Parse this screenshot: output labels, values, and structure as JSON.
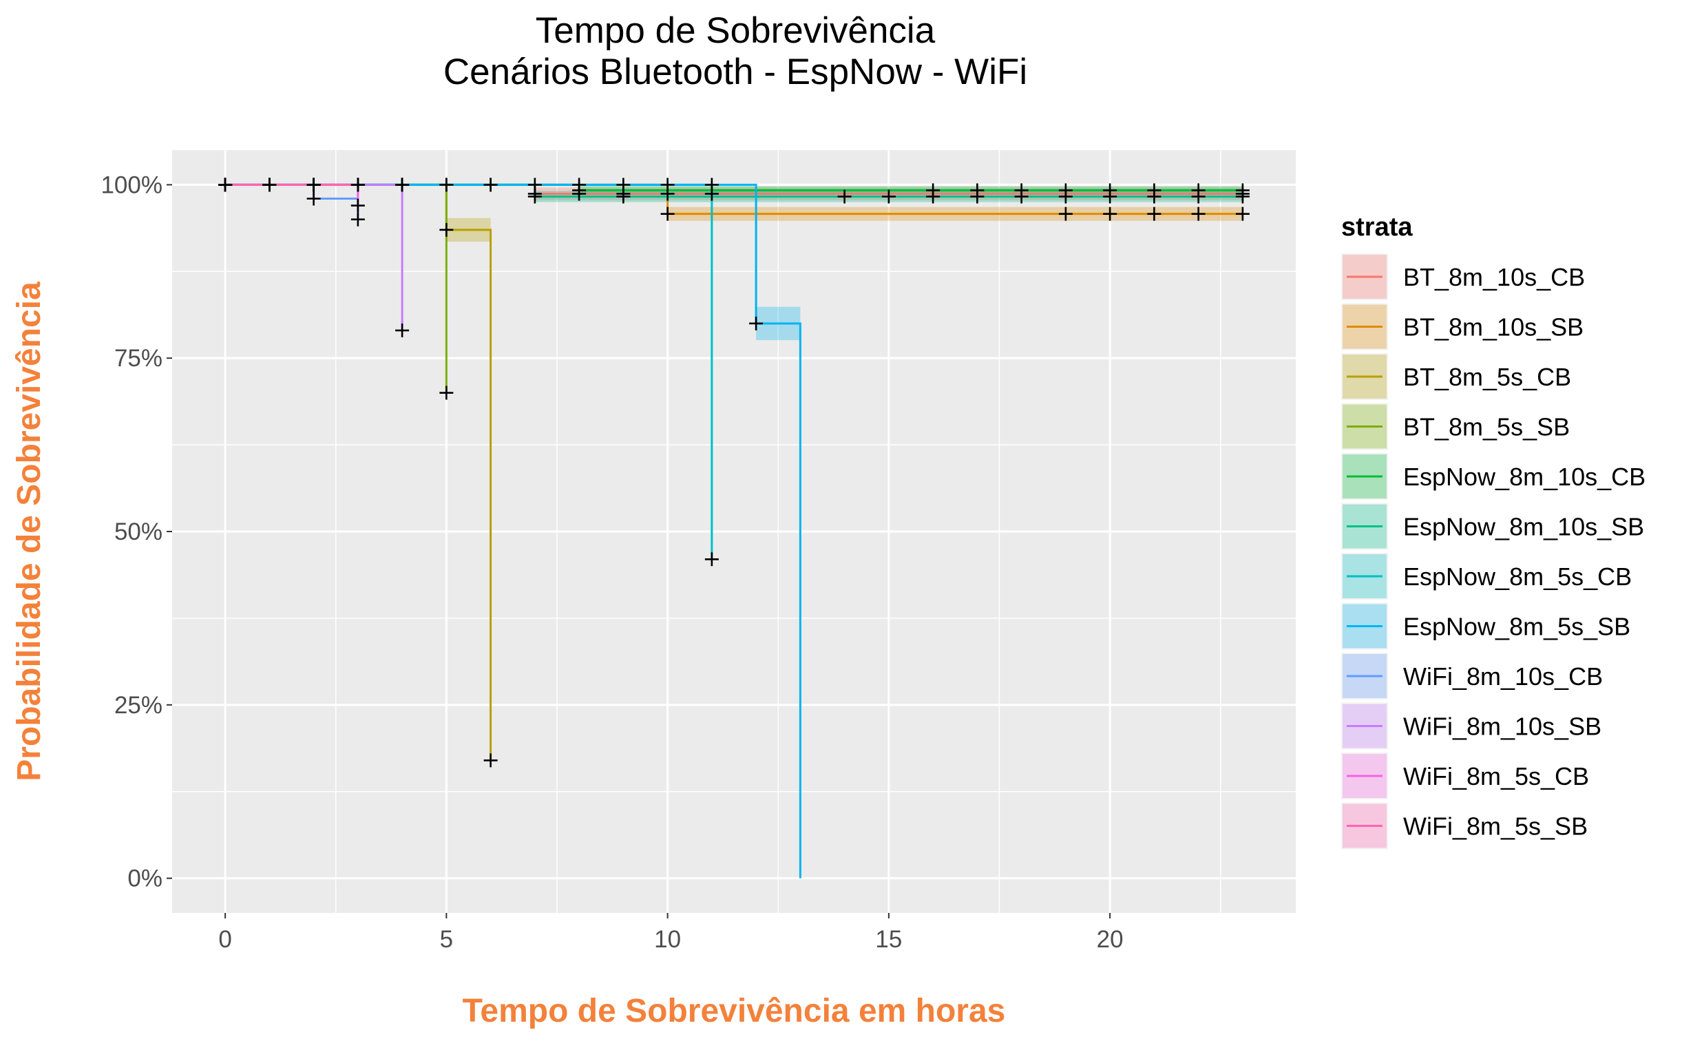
{
  "chart_data": {
    "type": "line",
    "subtype": "kaplan-meier-step",
    "title": "Tempo de Sobrevivência",
    "subtitle": "Cenários Bluetooth - EspNow - WiFi",
    "xlabel": "Tempo de Sobrevivência em horas",
    "ylabel": "Probabilidade de Sobrevivência",
    "xlim": [
      -1.2,
      24.2
    ],
    "ylim": [
      -0.05,
      1.05
    ],
    "x_ticks": [
      0,
      5,
      10,
      15,
      20
    ],
    "x_tick_labels": [
      "0",
      "5",
      "10",
      "15",
      "20"
    ],
    "y_ticks": [
      0,
      0.25,
      0.5,
      0.75,
      1
    ],
    "y_tick_labels": [
      "0%",
      "25%",
      "50%",
      "75%",
      "100%"
    ],
    "grid": true,
    "legend_title": "strata",
    "legend_position": "right",
    "censor_symbol": "+",
    "series": [
      {
        "name": "BT_8m_10s_CB",
        "color": "#F8766D",
        "steps": [
          [
            0,
            1.0
          ],
          [
            7,
            0.987
          ],
          [
            23,
            0.987
          ]
        ],
        "ci": [
          [
            0,
            1.0,
            1.0
          ],
          [
            7,
            0.978,
            0.996
          ],
          [
            23,
            0.978,
            0.996
          ]
        ],
        "censor": [
          [
            0,
            1.0
          ],
          [
            1,
            1.0
          ],
          [
            2,
            1.0
          ],
          [
            3,
            1.0
          ],
          [
            4,
            1.0
          ],
          [
            5,
            1.0
          ],
          [
            6,
            1.0
          ],
          [
            7,
            0.987
          ],
          [
            8,
            0.987
          ],
          [
            9,
            0.987
          ],
          [
            10,
            0.987
          ],
          [
            11,
            0.987
          ],
          [
            23,
            0.987
          ]
        ]
      },
      {
        "name": "BT_8m_10s_SB",
        "color": "#DE8C00",
        "steps": [
          [
            0,
            1.0
          ],
          [
            10,
            0.958
          ],
          [
            23,
            0.958
          ]
        ],
        "ci": [
          [
            0,
            1.0,
            1.0
          ],
          [
            10,
            0.948,
            0.968
          ],
          [
            23,
            0.948,
            0.968
          ]
        ],
        "censor": [
          [
            0,
            1.0
          ],
          [
            2,
            1.0
          ],
          [
            4,
            1.0
          ],
          [
            6,
            1.0
          ],
          [
            8,
            1.0
          ],
          [
            10,
            0.958
          ],
          [
            19,
            0.958
          ],
          [
            20,
            0.958
          ],
          [
            21,
            0.958
          ],
          [
            22,
            0.958
          ],
          [
            23,
            0.958
          ]
        ]
      },
      {
        "name": "BT_8m_5s_CB",
        "color": "#B79F00",
        "steps": [
          [
            0,
            1.0
          ],
          [
            5,
            0.935
          ],
          [
            6,
            0.17
          ],
          [
            6,
            0.17
          ]
        ],
        "ci": [
          [
            0,
            1.0,
            1.0
          ],
          [
            5,
            0.918,
            0.952
          ],
          [
            6,
            0.17,
            0.17
          ]
        ],
        "censor": [
          [
            0,
            1.0
          ],
          [
            1,
            1.0
          ],
          [
            2,
            1.0
          ],
          [
            3,
            1.0
          ],
          [
            4,
            1.0
          ],
          [
            5,
            0.935
          ],
          [
            6,
            0.17
          ]
        ]
      },
      {
        "name": "BT_8m_5s_SB",
        "color": "#7CAE00",
        "steps": [
          [
            0,
            1.0
          ],
          [
            5,
            0.7
          ],
          [
            5,
            0.7
          ]
        ],
        "ci": [
          [
            0,
            1.0,
            1.0
          ],
          [
            5,
            0.7,
            0.7
          ]
        ],
        "censor": [
          [
            0,
            1.0
          ],
          [
            1,
            1.0
          ],
          [
            3,
            1.0
          ],
          [
            5,
            0.7
          ]
        ]
      },
      {
        "name": "EspNow_8m_10s_CB",
        "color": "#00BA38",
        "steps": [
          [
            0,
            1.0
          ],
          [
            8,
            0.992
          ],
          [
            23,
            0.992
          ]
        ],
        "ci": [
          [
            0,
            1.0,
            1.0
          ],
          [
            8,
            0.986,
            0.998
          ],
          [
            23,
            0.986,
            0.998
          ]
        ],
        "censor": [
          [
            0,
            1.0
          ],
          [
            4,
            1.0
          ],
          [
            8,
            0.992
          ],
          [
            16,
            0.992
          ],
          [
            17,
            0.992
          ],
          [
            18,
            0.992
          ],
          [
            19,
            0.992
          ],
          [
            20,
            0.992
          ],
          [
            21,
            0.992
          ],
          [
            22,
            0.992
          ],
          [
            23,
            0.992
          ]
        ]
      },
      {
        "name": "EspNow_8m_10s_SB",
        "color": "#00C08B",
        "steps": [
          [
            0,
            1.0
          ],
          [
            7,
            0.983
          ],
          [
            23,
            0.983
          ]
        ],
        "ci": [
          [
            0,
            1.0,
            1.0
          ],
          [
            7,
            0.975,
            0.991
          ],
          [
            23,
            0.975,
            0.991
          ]
        ],
        "censor": [
          [
            0,
            1.0
          ],
          [
            3,
            1.0
          ],
          [
            7,
            0.983
          ],
          [
            9,
            0.983
          ],
          [
            14,
            0.983
          ],
          [
            15,
            0.983
          ],
          [
            16,
            0.983
          ],
          [
            17,
            0.983
          ],
          [
            18,
            0.983
          ],
          [
            19,
            0.983
          ],
          [
            20,
            0.983
          ],
          [
            21,
            0.983
          ],
          [
            22,
            0.983
          ],
          [
            23,
            0.983
          ]
        ]
      },
      {
        "name": "EspNow_8m_5s_CB",
        "color": "#00BFC4",
        "steps": [
          [
            0,
            1.0
          ],
          [
            11,
            0.46
          ],
          [
            11,
            0.46
          ]
        ],
        "ci": [
          [
            0,
            1.0,
            1.0
          ],
          [
            11,
            0.46,
            0.46
          ]
        ],
        "censor": [
          [
            0,
            1.0
          ],
          [
            2,
            1.0
          ],
          [
            5,
            1.0
          ],
          [
            9,
            1.0
          ],
          [
            11,
            0.46
          ]
        ]
      },
      {
        "name": "EspNow_8m_5s_SB",
        "color": "#00B4F0",
        "steps": [
          [
            0,
            1.0
          ],
          [
            12,
            0.8
          ],
          [
            13,
            0.0
          ],
          [
            13,
            0.0
          ]
        ],
        "ci": [
          [
            0,
            1.0,
            1.0
          ],
          [
            12,
            0.776,
            0.824
          ],
          [
            13,
            0.0,
            0.0
          ]
        ],
        "censor": [
          [
            0,
            1.0
          ],
          [
            4,
            1.0
          ],
          [
            7,
            1.0
          ],
          [
            10,
            1.0
          ],
          [
            11,
            1.0
          ],
          [
            12,
            0.8
          ]
        ]
      },
      {
        "name": "WiFi_8m_10s_CB",
        "color": "#619CFF",
        "steps": [
          [
            0,
            1.0
          ],
          [
            2,
            0.98
          ],
          [
            3,
            0.95
          ],
          [
            3,
            0.95
          ]
        ],
        "ci": [
          [
            0,
            1.0,
            1.0
          ],
          [
            2,
            0.98,
            0.98
          ],
          [
            3,
            0.95,
            0.95
          ]
        ],
        "censor": [
          [
            2,
            0.98
          ],
          [
            3,
            0.95
          ]
        ]
      },
      {
        "name": "WiFi_8m_10s_SB",
        "color": "#C77CFF",
        "steps": [
          [
            0,
            1.0
          ],
          [
            4,
            0.79
          ],
          [
            4,
            0.79
          ]
        ],
        "ci": [
          [
            0,
            1.0,
            1.0
          ],
          [
            4,
            0.79,
            0.79
          ]
        ],
        "censor": [
          [
            0,
            1.0
          ],
          [
            1,
            1.0
          ],
          [
            2,
            1.0
          ],
          [
            4,
            0.79
          ]
        ]
      },
      {
        "name": "WiFi_8m_5s_CB",
        "color": "#F564E3",
        "steps": [
          [
            0,
            1.0
          ],
          [
            3,
            0.97
          ],
          [
            3,
            0.97
          ]
        ],
        "ci": [
          [
            0,
            1.0,
            1.0
          ],
          [
            3,
            0.97,
            0.97
          ]
        ],
        "censor": [
          [
            0,
            1.0
          ],
          [
            1,
            1.0
          ],
          [
            3,
            0.97
          ]
        ]
      },
      {
        "name": "WiFi_8m_5s_SB",
        "color": "#FF64B0",
        "steps": [
          [
            0,
            1.0
          ],
          [
            3,
            1.0
          ],
          [
            3,
            1.0
          ]
        ],
        "ci": [
          [
            0,
            1.0,
            1.0
          ],
          [
            3,
            1.0,
            1.0
          ]
        ],
        "censor": [
          [
            0,
            1.0
          ],
          [
            1,
            1.0
          ],
          [
            2,
            1.0
          ],
          [
            3,
            1.0
          ]
        ]
      }
    ]
  }
}
